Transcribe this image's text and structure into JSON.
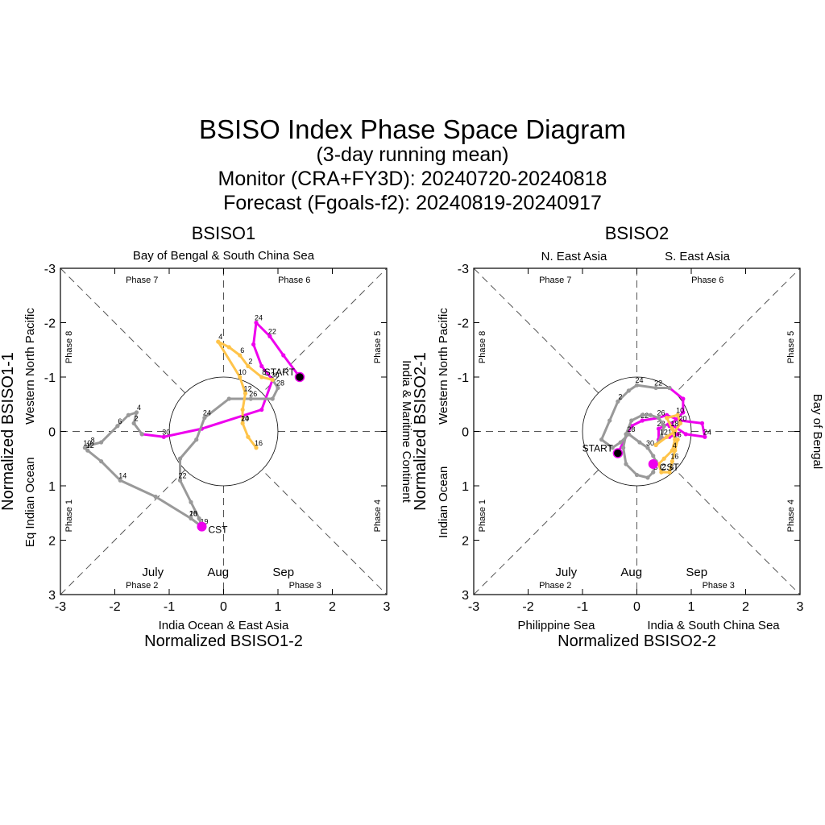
{
  "header": {
    "title": "BSISO Index Phase Space Diagram",
    "subtitle": "(3-day running mean)",
    "monitor": "Monitor (CRA+FY3D): 20240720-20240818",
    "forecast": "Forecast (Fgoals-f2): 20240819-20240917"
  },
  "colors": {
    "july": "#ee00ee",
    "aug": "#999999",
    "sep": "#ffc44a"
  },
  "chart_data": [
    {
      "type": "line",
      "title": "BSISO1",
      "xlabel": "Normalized BSISO1-2",
      "ylabel": "Normalized BSISO1-1",
      "xlim": [
        -3,
        3
      ],
      "ylim": [
        3,
        -3
      ],
      "y_inverted": true,
      "ticks": [
        "-3",
        "-2",
        "-1",
        "0",
        "1",
        "2",
        "3"
      ],
      "region_labels": {
        "top": [
          "Bay of Bengal & South China Sea"
        ],
        "bottom": [
          "India Ocean & East Asia"
        ],
        "left": [
          "Eq Indian Ocean"
        ],
        "left_upper": "Western North Pacific",
        "right": "India & Maritime Continent"
      },
      "phase_labels": [
        "Phase 1",
        "Phase 2",
        "Phase 3",
        "Phase 4",
        "Phase 5",
        "Phase 6",
        "Phase 7",
        "Phase 8"
      ],
      "month_legend": [
        "July",
        "Aug",
        "Sep"
      ],
      "start_label": "START",
      "current_label": "CST",
      "start": [
        1.4,
        -1.0
      ],
      "current": [
        -0.4,
        1.75
      ],
      "series": [
        {
          "name": "July",
          "color": "#ee00ee",
          "points": [
            [
              1.4,
              -1.0
            ],
            [
              1.1,
              -1.4
            ],
            [
              0.85,
              -1.75
            ],
            [
              0.6,
              -2.0
            ],
            [
              0.55,
              -1.6
            ],
            [
              0.7,
              -1.2
            ],
            [
              0.9,
              -0.95
            ],
            [
              0.7,
              -0.4
            ],
            [
              -0.4,
              -0.05
            ],
            [
              -1.1,
              0.1
            ],
            [
              -1.5,
              0.05
            ]
          ],
          "labels": [
            {
              "i": 2,
              "text": "22"
            },
            {
              "i": 3,
              "text": "24"
            },
            {
              "i": 9,
              "text": "30"
            }
          ]
        },
        {
          "name": "Aug",
          "color": "#999999",
          "points": [
            [
              -1.5,
              0.05
            ],
            [
              -1.65,
              -0.15
            ],
            [
              -1.6,
              -0.35
            ],
            [
              -1.75,
              -0.3
            ],
            [
              -1.95,
              -0.1
            ],
            [
              -2.25,
              0.2
            ],
            [
              -2.45,
              0.25
            ],
            [
              -2.55,
              0.3
            ],
            [
              -2.5,
              0.35
            ],
            [
              -2.25,
              0.55
            ],
            [
              -1.9,
              0.9
            ],
            [
              -1.25,
              1.2
            ],
            [
              -0.6,
              1.6
            ],
            [
              -0.4,
              1.75
            ],
            [
              -0.45,
              1.6
            ],
            [
              -0.6,
              1.3
            ],
            [
              -0.8,
              0.9
            ],
            [
              -0.8,
              0.5
            ],
            [
              -0.5,
              0.15
            ],
            [
              -0.35,
              -0.25
            ],
            [
              0.1,
              -0.6
            ],
            [
              0.5,
              -0.6
            ],
            [
              0.9,
              -0.6
            ],
            [
              1.0,
              -0.8
            ],
            [
              0.9,
              -0.95
            ]
          ],
          "labels": [
            {
              "i": 1,
              "text": "2"
            },
            {
              "i": 2,
              "text": "4"
            },
            {
              "i": 4,
              "text": "6"
            },
            {
              "i": 6,
              "text": "8"
            },
            {
              "i": 7,
              "text": "10"
            },
            {
              "i": 8,
              "text": "12"
            },
            {
              "i": 10,
              "text": "14"
            },
            {
              "i": 12,
              "text": "18"
            },
            {
              "i": 12,
              "text": "20"
            },
            {
              "i": 13,
              "text": "19"
            },
            {
              "i": 16,
              "text": "22"
            },
            {
              "i": 19,
              "text": "24"
            },
            {
              "i": 21,
              "text": "26"
            },
            {
              "i": 23,
              "text": "28"
            },
            {
              "i": 24,
              "text": "30"
            }
          ]
        },
        {
          "name": "Sep",
          "color": "#ffc44a",
          "points": [
            [
              0.9,
              -0.95
            ],
            [
              0.7,
              -1.0
            ],
            [
              0.45,
              -1.2
            ],
            [
              0.3,
              -1.4
            ],
            [
              0.1,
              -1.55
            ],
            [
              -0.1,
              -1.65
            ],
            [
              0.3,
              -1.0
            ],
            [
              0.4,
              -0.7
            ],
            [
              0.35,
              -0.4
            ],
            [
              0.35,
              -0.15
            ],
            [
              0.45,
              0.1
            ],
            [
              0.6,
              0.3
            ]
          ],
          "labels": [
            {
              "i": 5,
              "text": "4"
            },
            {
              "i": 3,
              "text": "6"
            },
            {
              "i": 2,
              "text": "2"
            },
            {
              "i": 1,
              "text": "8"
            },
            {
              "i": 6,
              "text": "10"
            },
            {
              "i": 7,
              "text": "12"
            },
            {
              "i": 9,
              "text": "14"
            },
            {
              "i": 9,
              "text": "20"
            },
            {
              "i": 11,
              "text": "16"
            }
          ]
        }
      ]
    },
    {
      "type": "line",
      "title": "BSISO2",
      "xlabel": "Normalized BSISO2-2",
      "ylabel": "Normalized BSISO2-1",
      "xlim": [
        -3,
        3
      ],
      "ylim": [
        3,
        -3
      ],
      "y_inverted": true,
      "ticks": [
        "-3",
        "-2",
        "-1",
        "0",
        "1",
        "2",
        "3"
      ],
      "region_labels": {
        "top": [
          "N. East Asia",
          "S. East Asia"
        ],
        "bottom": [
          "Philippine Sea",
          "India & South China Sea"
        ],
        "left": [
          "Indian Ocean"
        ],
        "left_upper": "Western North Pacific",
        "right": "Bay of Bengal"
      },
      "phase_labels": [
        "Phase 1",
        "Phase 2",
        "Phase 3",
        "Phase 4",
        "Phase 5",
        "Phase 6",
        "Phase 7",
        "Phase 8"
      ],
      "month_legend": [
        "July",
        "Aug",
        "Sep"
      ],
      "start_label": "START",
      "current_label": "CST",
      "start": [
        -0.35,
        0.4
      ],
      "current": [
        0.3,
        0.6
      ],
      "series": [
        {
          "name": "July",
          "color": "#ee00ee",
          "points": [
            [
              -0.35,
              0.4
            ],
            [
              -0.25,
              0.2
            ],
            [
              -0.1,
              -0.1
            ],
            [
              0.1,
              -0.2
            ],
            [
              0.4,
              -0.25
            ],
            [
              0.55,
              -0.3
            ],
            [
              0.8,
              -0.2
            ],
            [
              1.2,
              -0.15
            ],
            [
              1.25,
              0.1
            ],
            [
              0.9,
              0.05
            ],
            [
              0.6,
              -0.15
            ],
            [
              0.4,
              -0.05
            ],
            [
              0.4,
              0.15
            ],
            [
              0.6,
              0.1
            ],
            [
              0.75,
              0.05
            ],
            [
              0.6,
              -0.1
            ],
            [
              0.85,
              -0.35
            ],
            [
              0.85,
              -0.6
            ],
            [
              0.6,
              -0.8
            ]
          ],
          "labels": [
            {
              "i": 8,
              "text": "24"
            },
            {
              "i": 3,
              "text": "22"
            },
            {
              "i": 11,
              "text": "28"
            },
            {
              "i": 13,
              "text": "14"
            }
          ]
        },
        {
          "name": "Aug",
          "color": "#999999",
          "points": [
            [
              0.6,
              -0.8
            ],
            [
              0.35,
              -0.8
            ],
            [
              0.0,
              -0.85
            ],
            [
              -0.15,
              -0.75
            ],
            [
              -0.35,
              -0.55
            ],
            [
              -0.5,
              -0.2
            ],
            [
              -0.65,
              0.15
            ],
            [
              -0.45,
              0.3
            ],
            [
              -0.3,
              0.2
            ],
            [
              -0.15,
              0.05
            ],
            [
              0.05,
              0.2
            ],
            [
              0.2,
              0.3
            ],
            [
              0.3,
              0.45
            ],
            [
              0.35,
              0.55
            ],
            [
              0.3,
              0.75
            ],
            [
              0.2,
              0.85
            ],
            [
              0.0,
              0.8
            ],
            [
              -0.2,
              0.6
            ],
            [
              -0.25,
              0.3
            ],
            [
              -0.2,
              0.05
            ],
            [
              -0.1,
              -0.2
            ],
            [
              0.1,
              -0.3
            ],
            [
              0.25,
              -0.3
            ],
            [
              0.4,
              -0.25
            ],
            [
              0.5,
              -0.1
            ],
            [
              0.45,
              0.1
            ],
            [
              0.35,
              0.25
            ]
          ],
          "labels": [
            {
              "i": 1,
              "text": "22"
            },
            {
              "i": 2,
              "text": "24"
            },
            {
              "i": 4,
              "text": "2"
            },
            {
              "i": 9,
              "text": "28"
            },
            {
              "i": 11,
              "text": "30"
            },
            {
              "i": 14,
              "text": "8"
            },
            {
              "i": 23,
              "text": "26"
            },
            {
              "i": 25,
              "text": "12"
            }
          ]
        },
        {
          "name": "Sep",
          "color": "#ffc44a",
          "points": [
            [
              0.35,
              0.25
            ],
            [
              0.55,
              0.1
            ],
            [
              0.7,
              0.0
            ],
            [
              0.8,
              -0.15
            ],
            [
              0.75,
              -0.3
            ],
            [
              0.55,
              -0.25
            ],
            [
              0.65,
              -0.05
            ],
            [
              0.7,
              0.15
            ],
            [
              0.65,
              0.35
            ],
            [
              0.5,
              0.5
            ],
            [
              0.4,
              0.6
            ],
            [
              0.45,
              0.75
            ],
            [
              0.6,
              0.75
            ],
            [
              0.65,
              0.55
            ],
            [
              0.7,
              0.35
            ],
            [
              0.75,
              0.15
            ]
          ],
          "labels": [
            {
              "i": 3,
              "text": "20"
            },
            {
              "i": 4,
              "text": "10"
            },
            {
              "i": 6,
              "text": "18"
            },
            {
              "i": 7,
              "text": "16"
            },
            {
              "i": 8,
              "text": "4"
            },
            {
              "i": 11,
              "text": "2"
            },
            {
              "i": 12,
              "text": "6"
            },
            {
              "i": 13,
              "text": "16"
            }
          ]
        }
      ]
    }
  ]
}
